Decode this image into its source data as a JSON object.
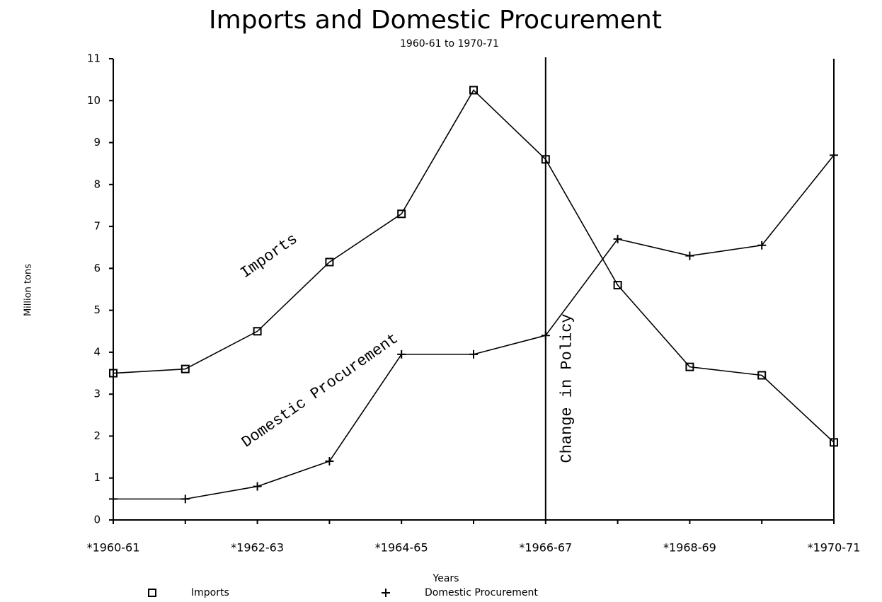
{
  "chart_data": {
    "type": "line",
    "title": "Imports and Domestic Procurement",
    "subtitle": "1960-61 to 1970-71",
    "y_label": "Million tons",
    "x_label": "Years",
    "categories": [
      "*1960-61",
      null,
      "*1962-63",
      null,
      "*1964-65",
      null,
      "*1966-67",
      null,
      "*1968-69",
      null,
      "*1970-71"
    ],
    "series": [
      {
        "name": "Imports",
        "color": "#000000",
        "marker": "square",
        "values": [
          3.5,
          3.6,
          4.5,
          6.15,
          7.3,
          10.25,
          8.6,
          5.6,
          3.65,
          3.45,
          1.85
        ]
      },
      {
        "name": "Domestic Procurement",
        "color": "#000000",
        "marker": "plus",
        "values": [
          0.5,
          0.5,
          0.8,
          1.4,
          3.95,
          3.95,
          4.4,
          6.7,
          6.3,
          6.55,
          8.7
        ]
      }
    ],
    "annotations": [
      {
        "text": "Imports"
      },
      {
        "text": "Domestic Procurement"
      },
      {
        "text": "Change in Policy",
        "category": "*1966-67"
      }
    ],
    "ylim": [
      0,
      11
    ],
    "yticks": [
      0,
      1,
      2,
      3,
      4,
      5,
      6,
      7,
      8,
      9,
      10,
      11
    ],
    "legend": "bottom"
  }
}
